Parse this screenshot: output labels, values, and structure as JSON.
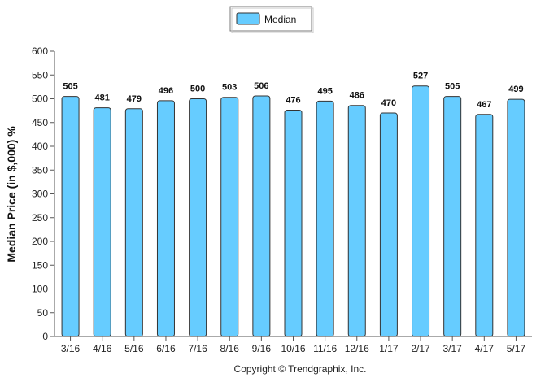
{
  "chart_data": {
    "type": "bar",
    "categories": [
      "3/16",
      "4/16",
      "5/16",
      "6/16",
      "7/16",
      "8/16",
      "9/16",
      "10/16",
      "11/16",
      "12/16",
      "1/17",
      "2/17",
      "3/17",
      "4/17",
      "5/17"
    ],
    "series": [
      {
        "name": "Median",
        "values": [
          505,
          481,
          479,
          496,
          500,
          503,
          506,
          476,
          495,
          486,
          470,
          527,
          505,
          467,
          499
        ]
      }
    ],
    "title": "",
    "xlabel": "",
    "ylabel": "Median Price (in $,000) %",
    "ylim": [
      0,
      600
    ],
    "yticks": [
      0,
      50,
      100,
      150,
      200,
      250,
      300,
      350,
      400,
      450,
      500,
      550,
      600
    ],
    "grid": false,
    "legend": "top-center",
    "data_labels": true,
    "colors": {
      "bar_fill": "#66ccff",
      "bar_stroke": "#333333"
    }
  },
  "credit": "Copyright © Trendgraphix, Inc."
}
